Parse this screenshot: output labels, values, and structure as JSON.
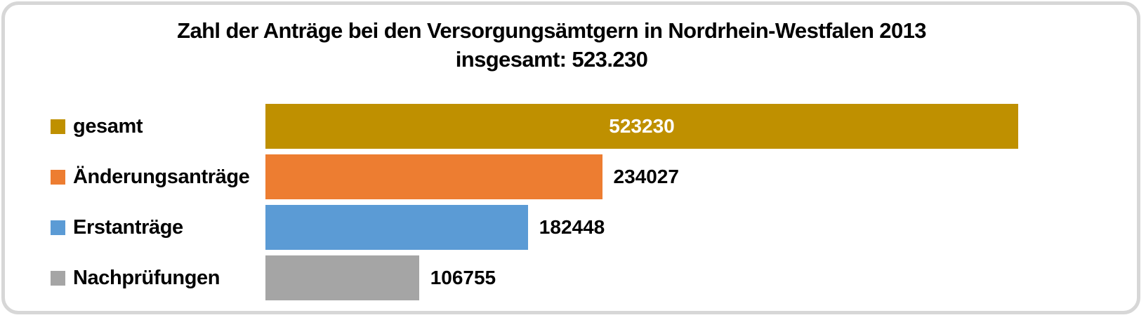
{
  "title": {
    "line1": "Zahl der Anträge bei den Versorgungsämtgern in Nordrhein-Westfalen 2013",
    "line2": "insgesamt: 523.230"
  },
  "chart_data": {
    "type": "bar",
    "orientation": "horizontal",
    "title": "Zahl der Anträge bei den Versorgungsämtgern in Nordrhein-Westfalen 2013 insgesamt: 523.230",
    "categories": [
      "gesamt",
      "Änderungsanträge",
      "Erstanträge",
      "Nachprüfungen"
    ],
    "values": [
      523230,
      234027,
      182448,
      106755
    ],
    "value_labels": [
      "523230",
      "234027",
      "182448",
      "106755"
    ],
    "colors": [
      "#BF9000",
      "#ED7D31",
      "#5B9BD5",
      "#A5A5A5"
    ],
    "xlabel": "",
    "ylabel": "",
    "xlim": [
      0,
      523230
    ],
    "grid": false,
    "legend_position": "category labels with color markers at left of bars",
    "value_label_placement": [
      "inside bar, centered, white",
      "right of bar end, black",
      "right of bar end, black",
      "right of bar end, black"
    ]
  }
}
